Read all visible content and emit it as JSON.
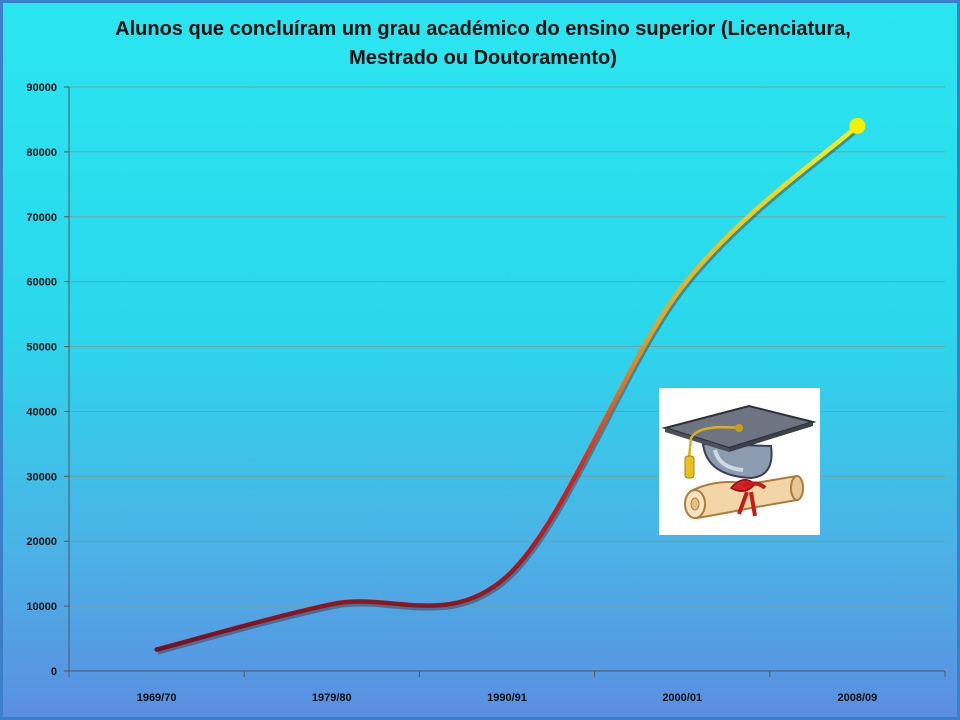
{
  "title_line1": "Alunos que concluíram um grau académico do ensino superior (Licenciatura,",
  "title_line2": "Mestrado ou Doutoramento)",
  "chart_data": {
    "type": "line",
    "title": "Alunos que concluíram um grau académico do ensino superior (Licenciatura, Mestrado ou Doutoramento)",
    "categories": [
      "1969/70",
      "1979/80",
      "1990/91",
      "2000/01",
      "2008/09"
    ],
    "series": [
      {
        "values": [
          3300,
          10300,
          14600,
          59200,
          84000
        ]
      }
    ],
    "ylim": [
      0,
      90000
    ],
    "yticks": [
      0,
      10000,
      20000,
      30000,
      40000,
      50000,
      60000,
      70000,
      80000,
      90000
    ],
    "xlabel": "",
    "ylabel": "",
    "grid": true,
    "legend": "none",
    "line_gradient": [
      "#6a0f1c",
      "#d42020",
      "#e8a020",
      "#f5f020"
    ],
    "end_marker_color": "#f5f000",
    "grid_color": "#6aa6a0"
  },
  "clipart": {
    "icon": "graduation-cap-diploma-icon"
  }
}
